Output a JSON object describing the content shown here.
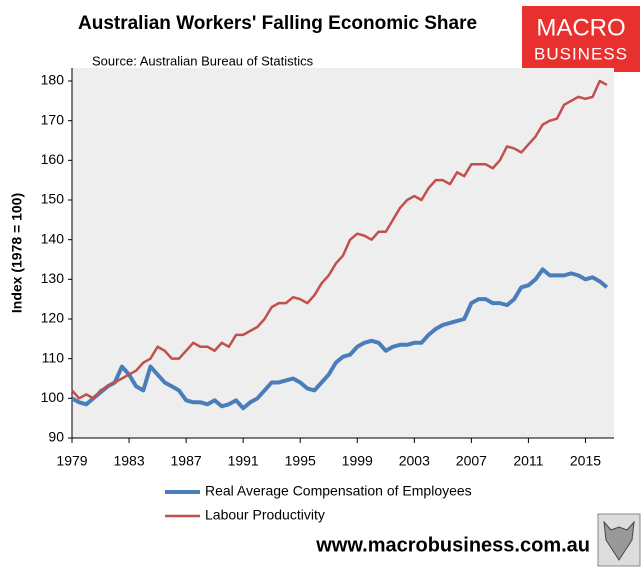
{
  "chart_data": {
    "type": "line",
    "title": "Australian Workers' Falling Economic Share",
    "subtitle": "Source: Australian Bureau of Statistics",
    "y_label": "Index (1978 = 100)",
    "logo": [
      "MACRO",
      "BUSINESS"
    ],
    "website": "www.macrobusiness.com.au",
    "x": [
      1979,
      1979.5,
      1980,
      1980.5,
      1981,
      1981.5,
      1982,
      1982.5,
      1983,
      1983.5,
      1984,
      1984.5,
      1985,
      1985.5,
      1986,
      1986.5,
      1987,
      1987.5,
      1988,
      1988.5,
      1989,
      1989.5,
      1990,
      1990.5,
      1991,
      1991.5,
      1992,
      1992.5,
      1993,
      1993.5,
      1994,
      1994.5,
      1995,
      1995.5,
      1996,
      1996.5,
      1997,
      1997.5,
      1998,
      1998.5,
      1999,
      1999.5,
      2000,
      2000.5,
      2001,
      2001.5,
      2002,
      2002.5,
      2003,
      2003.5,
      2004,
      2004.5,
      2005,
      2005.5,
      2006,
      2006.5,
      2007,
      2007.5,
      2008,
      2008.5,
      2009,
      2009.5,
      2010,
      2010.5,
      2011,
      2011.5,
      2012,
      2012.5,
      2013,
      2013.5,
      2014,
      2014.5,
      2015,
      2015.5,
      2016,
      2016.5
    ],
    "series": [
      {
        "name": "Real Average Compensation of Employees",
        "color": "#4a7ebb",
        "values": [
          100,
          99,
          98.5,
          100,
          101.5,
          103,
          104,
          108,
          106,
          103,
          102,
          108,
          106,
          104,
          103,
          102,
          99.5,
          99,
          99,
          98.5,
          99.5,
          98,
          98.5,
          99.5,
          97.5,
          99,
          100,
          102,
          104,
          104,
          104.5,
          105,
          104,
          102.5,
          102,
          104,
          106,
          109,
          110.5,
          111,
          113,
          114,
          114.5,
          114,
          112,
          113,
          113.5,
          113.5,
          114,
          114,
          116,
          117.5,
          118.5,
          119,
          119.5,
          120,
          124,
          125,
          125,
          124,
          124,
          123.5,
          125,
          128,
          128.5,
          130,
          132.5,
          131,
          131,
          131,
          131.5,
          131,
          130,
          130.5,
          129.5,
          128
        ]
      },
      {
        "name": "Labour Productivity",
        "color": "#c0504d",
        "values": [
          102,
          100,
          101,
          100,
          102,
          103,
          104,
          105,
          106,
          107,
          109,
          110,
          113,
          112,
          110,
          110,
          112,
          114,
          113,
          113,
          112,
          114,
          113,
          116,
          116,
          117,
          118,
          120,
          123,
          124,
          124,
          125.5,
          125,
          124,
          126,
          129,
          131,
          134,
          136,
          140,
          141.5,
          141,
          140,
          142,
          142,
          145,
          148,
          150,
          151,
          150,
          153,
          155,
          155,
          154,
          157,
          156,
          159,
          159,
          159,
          158,
          160,
          163.5,
          163,
          162,
          164,
          166,
          169,
          170,
          170.5,
          174,
          175,
          176,
          175.5,
          176,
          180,
          179
        ]
      }
    ],
    "xlim": [
      1979,
      2017
    ],
    "xticks": [
      1979,
      1983,
      1987,
      1991,
      1995,
      1999,
      2003,
      2007,
      2011,
      2015
    ],
    "ylim": [
      90,
      180
    ],
    "yticks": [
      90,
      100,
      110,
      120,
      130,
      140,
      150,
      160,
      170,
      180
    ],
    "grid": false
  }
}
